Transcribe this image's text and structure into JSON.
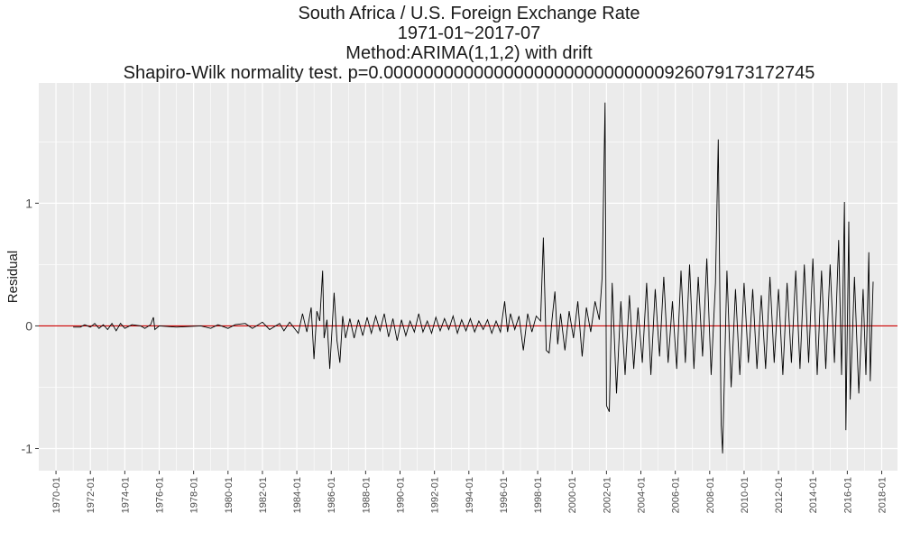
{
  "chart_data": {
    "type": "line",
    "title": "South Africa / U.S. Foreign Exchange Rate",
    "subtitle_lines": [
      "1971-01~2017-07",
      "Method:ARIMA(1,1,2) with drift",
      "Shapiro-Wilk normality test. p=0.0000000000000000000000000000926079173172745"
    ],
    "xlabel": "",
    "ylabel": "Residual",
    "x_tick_labels": [
      "1970-01",
      "1972-01",
      "1974-01",
      "1976-01",
      "1978-01",
      "1980-01",
      "1982-01",
      "1984-01",
      "1986-01",
      "1988-01",
      "1990-01",
      "1992-01",
      "1994-01",
      "1996-01",
      "1998-01",
      "2000-01",
      "2002-01",
      "2004-01",
      "2006-01",
      "2008-01",
      "2010-01",
      "2012-01",
      "2014-01",
      "2016-01",
      "2018-01"
    ],
    "x_range": [
      "1969-01",
      "2018-12"
    ],
    "y_ticks": [
      -1,
      0,
      1
    ],
    "y_tick_labels": [
      "-1",
      "0",
      "1"
    ],
    "ylim": [
      -1.18,
      1.98
    ],
    "reference_line": {
      "y": 0,
      "color": "#cc0000"
    },
    "series": [
      {
        "color": "#000000",
        "points": [
          [
            "1971-01",
            -0.01
          ],
          [
            "1971-06",
            -0.01
          ],
          [
            "1971-09",
            0.01
          ],
          [
            "1972-01",
            -0.01
          ],
          [
            "1972-04",
            0.02
          ],
          [
            "1972-07",
            -0.02
          ],
          [
            "1972-10",
            0.01
          ],
          [
            "1973-01",
            -0.03
          ],
          [
            "1973-04",
            0.02
          ],
          [
            "1973-07",
            -0.04
          ],
          [
            "1973-10",
            0.02
          ],
          [
            "1974-01",
            -0.02
          ],
          [
            "1974-06",
            0.01
          ],
          [
            "1974-12",
            0.0
          ],
          [
            "1975-03",
            -0.02
          ],
          [
            "1975-07",
            0.01
          ],
          [
            "1975-09",
            0.07
          ],
          [
            "1975-10",
            -0.03
          ],
          [
            "1976-01",
            0.0
          ],
          [
            "1977-01",
            -0.01
          ],
          [
            "1978-06",
            0.0
          ],
          [
            "1979-01",
            -0.02
          ],
          [
            "1979-06",
            0.01
          ],
          [
            "1980-01",
            -0.02
          ],
          [
            "1980-06",
            0.01
          ],
          [
            "1981-01",
            0.02
          ],
          [
            "1981-06",
            -0.02
          ],
          [
            "1982-01",
            0.03
          ],
          [
            "1982-06",
            -0.03
          ],
          [
            "1983-01",
            0.02
          ],
          [
            "1983-04",
            -0.04
          ],
          [
            "1983-08",
            0.03
          ],
          [
            "1984-02",
            -0.06
          ],
          [
            "1984-05",
            0.1
          ],
          [
            "1984-08",
            -0.05
          ],
          [
            "1984-11",
            0.15
          ],
          [
            "1985-01",
            -0.27
          ],
          [
            "1985-03",
            0.12
          ],
          [
            "1985-05",
            0.04
          ],
          [
            "1985-07",
            0.45
          ],
          [
            "1985-08",
            -0.1
          ],
          [
            "1985-10",
            0.05
          ],
          [
            "1985-12",
            -0.35
          ],
          [
            "1986-03",
            0.27
          ],
          [
            "1986-05",
            -0.12
          ],
          [
            "1986-07",
            -0.3
          ],
          [
            "1986-09",
            0.08
          ],
          [
            "1986-11",
            -0.1
          ],
          [
            "1987-02",
            0.06
          ],
          [
            "1987-05",
            -0.1
          ],
          [
            "1987-08",
            0.05
          ],
          [
            "1987-11",
            -0.08
          ],
          [
            "1988-02",
            0.07
          ],
          [
            "1988-05",
            -0.06
          ],
          [
            "1988-08",
            0.08
          ],
          [
            "1988-11",
            -0.04
          ],
          [
            "1989-02",
            0.1
          ],
          [
            "1989-05",
            -0.09
          ],
          [
            "1989-08",
            0.06
          ],
          [
            "1989-11",
            -0.12
          ],
          [
            "1990-02",
            0.05
          ],
          [
            "1990-05",
            -0.08
          ],
          [
            "1990-08",
            0.04
          ],
          [
            "1990-11",
            -0.05
          ],
          [
            "1991-02",
            0.1
          ],
          [
            "1991-05",
            -0.05
          ],
          [
            "1991-08",
            0.04
          ],
          [
            "1991-11",
            -0.06
          ],
          [
            "1992-02",
            0.07
          ],
          [
            "1992-05",
            -0.04
          ],
          [
            "1992-08",
            0.06
          ],
          [
            "1992-11",
            -0.03
          ],
          [
            "1993-02",
            0.08
          ],
          [
            "1993-05",
            -0.06
          ],
          [
            "1993-08",
            0.05
          ],
          [
            "1993-11",
            -0.04
          ],
          [
            "1994-02",
            0.06
          ],
          [
            "1994-05",
            -0.05
          ],
          [
            "1994-08",
            0.04
          ],
          [
            "1994-11",
            -0.03
          ],
          [
            "1995-02",
            0.05
          ],
          [
            "1995-05",
            -0.06
          ],
          [
            "1995-08",
            0.04
          ],
          [
            "1995-11",
            -0.05
          ],
          [
            "1996-02",
            0.2
          ],
          [
            "1996-04",
            -0.05
          ],
          [
            "1996-06",
            0.1
          ],
          [
            "1996-09",
            -0.03
          ],
          [
            "1996-12",
            0.08
          ],
          [
            "1997-03",
            -0.2
          ],
          [
            "1997-06",
            0.1
          ],
          [
            "1997-09",
            -0.05
          ],
          [
            "1997-12",
            0.08
          ],
          [
            "1998-03",
            0.04
          ],
          [
            "1998-05",
            0.72
          ],
          [
            "1998-07",
            -0.2
          ],
          [
            "1998-09",
            -0.22
          ],
          [
            "1998-11",
            0.05
          ],
          [
            "1999-01",
            0.28
          ],
          [
            "1999-03",
            -0.15
          ],
          [
            "1999-05",
            0.1
          ],
          [
            "1999-08",
            -0.2
          ],
          [
            "1999-11",
            0.12
          ],
          [
            "2000-02",
            -0.1
          ],
          [
            "2000-05",
            0.2
          ],
          [
            "2000-08",
            -0.25
          ],
          [
            "2000-11",
            0.15
          ],
          [
            "2001-02",
            -0.05
          ],
          [
            "2001-05",
            0.2
          ],
          [
            "2001-08",
            0.05
          ],
          [
            "2001-10",
            0.4
          ],
          [
            "2001-12",
            1.82
          ],
          [
            "2002-01",
            -0.65
          ],
          [
            "2002-03",
            -0.7
          ],
          [
            "2002-05",
            0.35
          ],
          [
            "2002-08",
            -0.55
          ],
          [
            "2002-11",
            0.2
          ],
          [
            "2003-02",
            -0.4
          ],
          [
            "2003-05",
            0.25
          ],
          [
            "2003-08",
            -0.35
          ],
          [
            "2003-11",
            0.15
          ],
          [
            "2004-02",
            -0.3
          ],
          [
            "2004-05",
            0.35
          ],
          [
            "2004-08",
            -0.4
          ],
          [
            "2004-11",
            0.3
          ],
          [
            "2005-02",
            -0.25
          ],
          [
            "2005-05",
            0.4
          ],
          [
            "2005-08",
            -0.3
          ],
          [
            "2005-11",
            0.2
          ],
          [
            "2006-02",
            -0.35
          ],
          [
            "2006-05",
            0.45
          ],
          [
            "2006-08",
            -0.3
          ],
          [
            "2006-11",
            0.5
          ],
          [
            "2007-02",
            -0.35
          ],
          [
            "2007-05",
            0.4
          ],
          [
            "2007-08",
            -0.25
          ],
          [
            "2007-11",
            0.55
          ],
          [
            "2008-02",
            -0.4
          ],
          [
            "2008-05",
            0.35
          ],
          [
            "2008-07",
            1.52
          ],
          [
            "2008-09",
            -0.8
          ],
          [
            "2008-10",
            -1.04
          ],
          [
            "2009-01",
            0.45
          ],
          [
            "2009-04",
            -0.5
          ],
          [
            "2009-07",
            0.3
          ],
          [
            "2009-10",
            -0.4
          ],
          [
            "2010-01",
            0.35
          ],
          [
            "2010-04",
            -0.3
          ],
          [
            "2010-07",
            0.3
          ],
          [
            "2010-10",
            -0.35
          ],
          [
            "2011-01",
            0.25
          ],
          [
            "2011-04",
            -0.35
          ],
          [
            "2011-07",
            0.4
          ],
          [
            "2011-10",
            -0.3
          ],
          [
            "2012-01",
            0.3
          ],
          [
            "2012-04",
            -0.4
          ],
          [
            "2012-07",
            0.35
          ],
          [
            "2012-10",
            -0.3
          ],
          [
            "2013-01",
            0.45
          ],
          [
            "2013-04",
            -0.35
          ],
          [
            "2013-07",
            0.5
          ],
          [
            "2013-10",
            -0.3
          ],
          [
            "2014-01",
            0.55
          ],
          [
            "2014-04",
            -0.4
          ],
          [
            "2014-07",
            0.45
          ],
          [
            "2014-10",
            -0.35
          ],
          [
            "2015-01",
            0.5
          ],
          [
            "2015-04",
            -0.3
          ],
          [
            "2015-07",
            0.7
          ],
          [
            "2015-09",
            -0.4
          ],
          [
            "2015-11",
            1.01
          ],
          [
            "2015-12",
            -0.85
          ],
          [
            "2016-02",
            0.85
          ],
          [
            "2016-03",
            -0.6
          ],
          [
            "2016-06",
            0.4
          ],
          [
            "2016-09",
            -0.55
          ],
          [
            "2016-12",
            0.3
          ],
          [
            "2017-02",
            -0.4
          ],
          [
            "2017-04",
            0.6
          ],
          [
            "2017-05",
            -0.45
          ],
          [
            "2017-07",
            0.36
          ]
        ]
      }
    ]
  }
}
